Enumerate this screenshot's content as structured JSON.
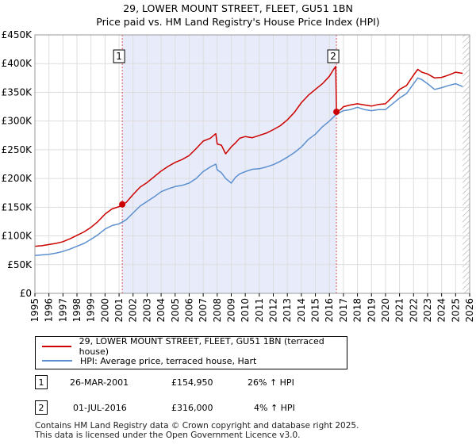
{
  "chart_data": {
    "type": "line",
    "title": "29, LOWER MOUNT STREET, FLEET, GU51 1BN",
    "subtitle": "Price paid vs. HM Land Registry's House Price Index (HPI)",
    "xlim": [
      1995,
      2026
    ],
    "ylim": [
      0,
      450000
    ],
    "x_ticks": [
      "1995",
      "1996",
      "1997",
      "1998",
      "1999",
      "2000",
      "2001",
      "2002",
      "2003",
      "2004",
      "2005",
      "2006",
      "2007",
      "2008",
      "2009",
      "2010",
      "2011",
      "2012",
      "2013",
      "2014",
      "2015",
      "2016",
      "2017",
      "2018",
      "2019",
      "2020",
      "2021",
      "2022",
      "2023",
      "2024",
      "2025",
      "2026"
    ],
    "y_ticks": [
      {
        "value": 0,
        "label": "£0"
      },
      {
        "value": 50000,
        "label": "£50K"
      },
      {
        "value": 100000,
        "label": "£100K"
      },
      {
        "value": 150000,
        "label": "£150K"
      },
      {
        "value": 200000,
        "label": "£200K"
      },
      {
        "value": 250000,
        "label": "£250K"
      },
      {
        "value": 300000,
        "label": "£300K"
      },
      {
        "value": 350000,
        "label": "£350K"
      },
      {
        "value": 400000,
        "label": "£400K"
      },
      {
        "value": 450000,
        "label": "£450K"
      }
    ],
    "shaded_region": {
      "from": 2001.23,
      "to": 2016.5,
      "color": "#e8ecfa"
    },
    "future_hatch_from": 2025.5,
    "series": [
      {
        "name": "29, LOWER MOUNT STREET, FLEET, GU51 1BN (terraced house)",
        "color": "#cc0000",
        "x": [
          1995.0,
          1995.5,
          1996.0,
          1996.5,
          1997.0,
          1997.5,
          1998.0,
          1998.5,
          1999.0,
          1999.5,
          2000.0,
          2000.5,
          2001.0,
          2001.23,
          2001.5,
          2002.0,
          2002.5,
          2003.0,
          2003.5,
          2004.0,
          2004.5,
          2005.0,
          2005.5,
          2006.0,
          2006.5,
          2007.0,
          2007.5,
          2007.9,
          2008.0,
          2008.3,
          2008.6,
          2009.0,
          2009.3,
          2009.6,
          2010.0,
          2010.5,
          2011.0,
          2011.5,
          2012.0,
          2012.5,
          2013.0,
          2013.5,
          2014.0,
          2014.5,
          2015.0,
          2015.5,
          2016.0,
          2016.3,
          2016.45,
          2016.5,
          2016.8,
          2017.0,
          2017.5,
          2018.0,
          2018.5,
          2019.0,
          2019.5,
          2020.0,
          2020.5,
          2021.0,
          2021.5,
          2022.0,
          2022.3,
          2022.6,
          2023.0,
          2023.5,
          2024.0,
          2024.5,
          2025.0,
          2025.5
        ],
        "y": [
          82000,
          83000,
          85000,
          87000,
          90000,
          95000,
          101000,
          107000,
          115000,
          125000,
          138000,
          147000,
          151000,
          154950,
          158000,
          172000,
          185000,
          193000,
          203000,
          213000,
          221000,
          228000,
          233000,
          240000,
          252000,
          265000,
          270000,
          278000,
          260000,
          258000,
          243000,
          255000,
          262000,
          270000,
          273000,
          271000,
          275000,
          279000,
          285000,
          292000,
          302000,
          315000,
          332000,
          345000,
          355000,
          365000,
          378000,
          390000,
          395000,
          316000,
          320000,
          325000,
          328000,
          330000,
          328000,
          326000,
          329000,
          330000,
          342000,
          355000,
          362000,
          380000,
          390000,
          385000,
          382000,
          375000,
          376000,
          380000,
          385000,
          383000
        ]
      },
      {
        "name": "HPI: Average price, terraced house, Hart",
        "color": "#5b8fcf",
        "x": [
          1995.0,
          1995.5,
          1996.0,
          1996.5,
          1997.0,
          1997.5,
          1998.0,
          1998.5,
          1999.0,
          1999.5,
          2000.0,
          2000.5,
          2001.0,
          2001.5,
          2002.0,
          2002.5,
          2003.0,
          2003.5,
          2004.0,
          2004.5,
          2005.0,
          2005.5,
          2006.0,
          2006.5,
          2007.0,
          2007.5,
          2007.9,
          2008.0,
          2008.3,
          2008.6,
          2009.0,
          2009.3,
          2009.6,
          2010.0,
          2010.5,
          2011.0,
          2011.5,
          2012.0,
          2012.5,
          2013.0,
          2013.5,
          2014.0,
          2014.5,
          2015.0,
          2015.5,
          2016.0,
          2016.5,
          2017.0,
          2017.5,
          2018.0,
          2018.5,
          2019.0,
          2019.5,
          2020.0,
          2020.5,
          2021.0,
          2021.5,
          2022.0,
          2022.3,
          2022.6,
          2023.0,
          2023.5,
          2024.0,
          2024.5,
          2025.0,
          2025.5
        ],
        "y": [
          66000,
          67000,
          68000,
          70000,
          73000,
          77000,
          82000,
          87000,
          94000,
          102000,
          112000,
          118000,
          121000,
          128000,
          140000,
          152000,
          160000,
          168000,
          177000,
          182000,
          186000,
          188000,
          192000,
          200000,
          212000,
          220000,
          225000,
          215000,
          210000,
          200000,
          192000,
          202000,
          208000,
          212000,
          216000,
          217000,
          220000,
          224000,
          230000,
          237000,
          245000,
          255000,
          268000,
          277000,
          290000,
          300000,
          312000,
          318000,
          320000,
          324000,
          320000,
          318000,
          320000,
          320000,
          330000,
          340000,
          348000,
          365000,
          375000,
          372000,
          365000,
          355000,
          358000,
          362000,
          365000,
          360000
        ]
      }
    ],
    "markers": [
      {
        "id": "1",
        "x": 2001.23,
        "y": 154950
      },
      {
        "id": "2",
        "x": 2016.5,
        "y": 316000
      }
    ]
  },
  "legend": {
    "items": [
      {
        "label": "29, LOWER MOUNT STREET, FLEET, GU51 1BN (terraced house)",
        "color": "#cc0000"
      },
      {
        "label": "HPI: Average price, terraced house, Hart",
        "color": "#5b8fcf"
      }
    ]
  },
  "annotations": [
    {
      "id": "1",
      "date": "26-MAR-2001",
      "price": "£154,950",
      "hpi": "26% ↑ HPI"
    },
    {
      "id": "2",
      "date": "01-JUL-2016",
      "price": "£316,000",
      "hpi": "4% ↑ HPI"
    }
  ],
  "footer": {
    "line1": "Contains HM Land Registry data © Crown copyright and database right 2025.",
    "line2": "This data is licensed under the Open Government Licence v3.0."
  }
}
